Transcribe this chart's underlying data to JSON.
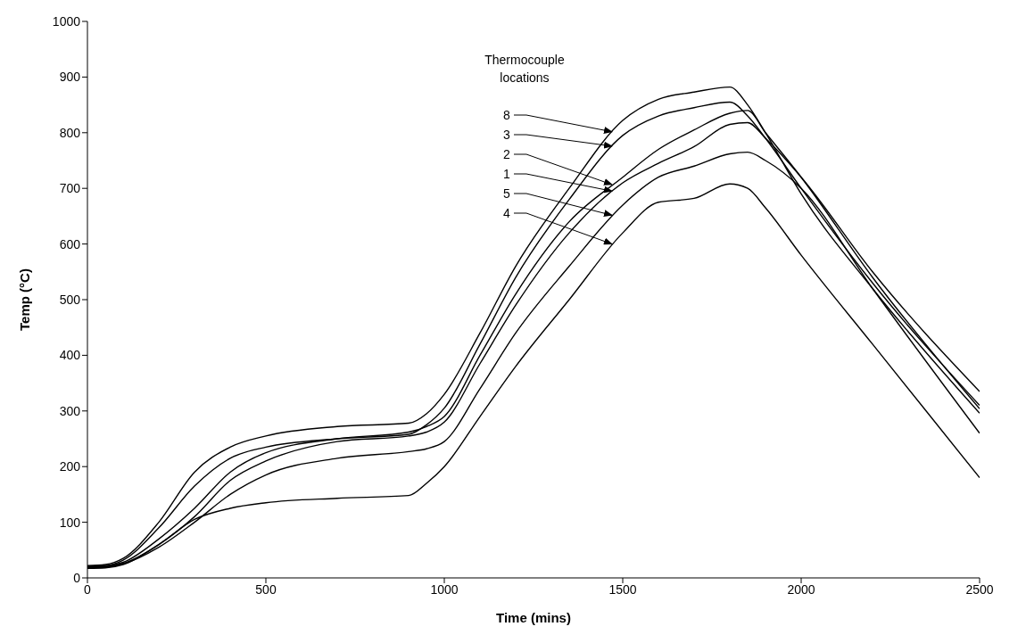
{
  "chart_data": {
    "type": "line",
    "xlabel": "Time (mins)",
    "ylabel": "Temp (°C)",
    "legend_title": "Thermocouple locations",
    "xlim": [
      0,
      2500
    ],
    "ylim": [
      0,
      1000
    ],
    "xticks": [
      0,
      500,
      1000,
      1500,
      2000,
      2500
    ],
    "yticks": [
      0,
      100,
      200,
      300,
      400,
      500,
      600,
      700,
      800,
      900,
      1000
    ],
    "grid": false,
    "legend": "top",
    "marker": "none",
    "line_style": "solid",
    "x": [
      0,
      50,
      100,
      200,
      300,
      400,
      500,
      700,
      900,
      950,
      1000,
      1100,
      1200,
      1350,
      1500,
      1600,
      1700,
      1800,
      1850,
      1900,
      2000,
      2200,
      2500
    ],
    "series": [
      {
        "name": "8",
        "color": "#000000",
        "values": [
          22,
          24,
          35,
          100,
          190,
          235,
          255,
          272,
          278,
          295,
          330,
          440,
          560,
          700,
          822,
          860,
          873,
          882,
          850,
          800,
          690,
          520,
          296
        ]
      },
      {
        "name": "3",
        "color": "#000000",
        "values": [
          21,
          22,
          32,
          90,
          165,
          215,
          235,
          250,
          258,
          275,
          305,
          420,
          540,
          680,
          795,
          830,
          845,
          855,
          830,
          790,
          700,
          530,
          310
        ]
      },
      {
        "name": "2",
        "color": "#000000",
        "values": [
          20,
          21,
          28,
          70,
          125,
          190,
          225,
          250,
          262,
          272,
          290,
          400,
          510,
          640,
          720,
          770,
          805,
          835,
          840,
          800,
          720,
          540,
          304
        ]
      },
      {
        "name": "1",
        "color": "#000000",
        "values": [
          19,
          20,
          26,
          60,
          110,
          175,
          210,
          245,
          255,
          262,
          280,
          385,
          490,
          620,
          710,
          745,
          775,
          815,
          818,
          790,
          720,
          550,
          335
        ]
      },
      {
        "name": "5",
        "color": "#000000",
        "values": [
          18,
          19,
          25,
          55,
          100,
          150,
          185,
          215,
          227,
          232,
          245,
          340,
          440,
          560,
          670,
          720,
          740,
          762,
          765,
          750,
          700,
          520,
          260
        ]
      },
      {
        "name": "4",
        "color": "#000000",
        "values": [
          17,
          18,
          24,
          60,
          105,
          125,
          135,
          143,
          148,
          170,
          200,
          290,
          380,
          500,
          620,
          675,
          682,
          708,
          700,
          665,
          580,
          420,
          180
        ]
      }
    ]
  }
}
